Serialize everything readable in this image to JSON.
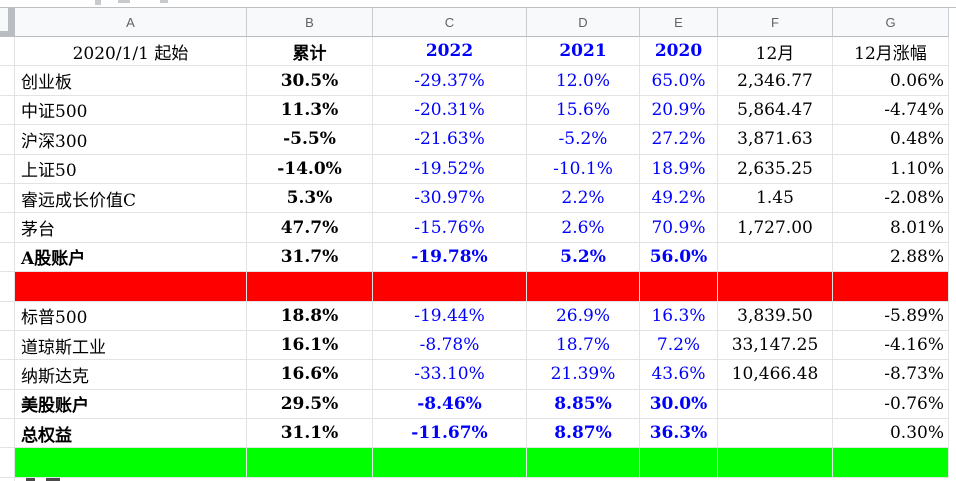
{
  "colors": {
    "accent_blue": "#0000ff",
    "divider_red": "#ff0000",
    "divider_green": "#00ff00",
    "header_bg": "#f8f9fa",
    "header_text": "#5f6368",
    "grid_line": "#e2e3e4"
  },
  "column_headers": [
    "A",
    "B",
    "C",
    "D",
    "E",
    "F",
    "G"
  ],
  "title_row": {
    "label": "2020/1/1 起始",
    "b": "累计",
    "c": "2022",
    "d": "2021",
    "e": "2020",
    "f": "12月",
    "g": "12月涨幅"
  },
  "rows": [
    {
      "kind": "index",
      "label": "创业板",
      "b": "30.5%",
      "c": "-29.37%",
      "d": "12.0%",
      "e": "65.0%",
      "f": "2,346.77",
      "g": "0.06%"
    },
    {
      "kind": "index",
      "label": "中证500",
      "b": "11.3%",
      "c": "-20.31%",
      "d": "15.6%",
      "e": "20.9%",
      "f": "5,864.47",
      "g": "-4.74%"
    },
    {
      "kind": "index",
      "label": "沪深300",
      "b": "-5.5%",
      "c": "-21.63%",
      "d": "-5.2%",
      "e": "27.2%",
      "f": "3,871.63",
      "g": "0.48%"
    },
    {
      "kind": "index",
      "label": "上证50",
      "b": "-14.0%",
      "c": "-19.52%",
      "d": "-10.1%",
      "e": "18.9%",
      "f": "2,635.25",
      "g": "1.10%"
    },
    {
      "kind": "index",
      "label": "睿远成长价值C",
      "b": "5.3%",
      "c": "-30.97%",
      "d": "2.2%",
      "e": "49.2%",
      "f": "1.45",
      "g": "-2.08%"
    },
    {
      "kind": "index",
      "label": "茅台",
      "b": "47.7%",
      "c": "-15.76%",
      "d": "2.6%",
      "e": "70.9%",
      "f": "1,727.00",
      "g": "8.01%"
    },
    {
      "kind": "account",
      "label": "A股账户",
      "b": "31.7%",
      "c": "-19.78%",
      "d": "5.2%",
      "e": "56.0%",
      "f": "",
      "g": "2.88%"
    },
    {
      "kind": "red",
      "label": "",
      "b": "",
      "c": "",
      "d": "",
      "e": "",
      "f": "",
      "g": ""
    },
    {
      "kind": "index",
      "label": "标普500",
      "b": "18.8%",
      "c": "-19.44%",
      "d": "26.9%",
      "e": "16.3%",
      "f": "3,839.50",
      "g": "-5.89%"
    },
    {
      "kind": "index",
      "label": "道琼斯工业",
      "b": "16.1%",
      "c": "-8.78%",
      "d": "18.7%",
      "e": "7.2%",
      "f": "33,147.25",
      "g": "-4.16%"
    },
    {
      "kind": "index",
      "label": "纳斯达克",
      "b": "16.6%",
      "c": "-33.10%",
      "d": "21.39%",
      "e": "43.6%",
      "f": "10,466.48",
      "g": "-8.73%"
    },
    {
      "kind": "account",
      "label": "美股账户",
      "b": "29.5%",
      "c": "-8.46%",
      "d": "8.85%",
      "e": "30.0%",
      "f": "",
      "g": "-0.76%"
    },
    {
      "kind": "account",
      "label": "总权益",
      "b": "31.1%",
      "c": "-11.67%",
      "d": "8.87%",
      "e": "36.3%",
      "f": "",
      "g": "0.30%"
    },
    {
      "kind": "green",
      "label": "",
      "b": "",
      "c": "",
      "d": "",
      "e": "",
      "f": "",
      "g": ""
    }
  ]
}
